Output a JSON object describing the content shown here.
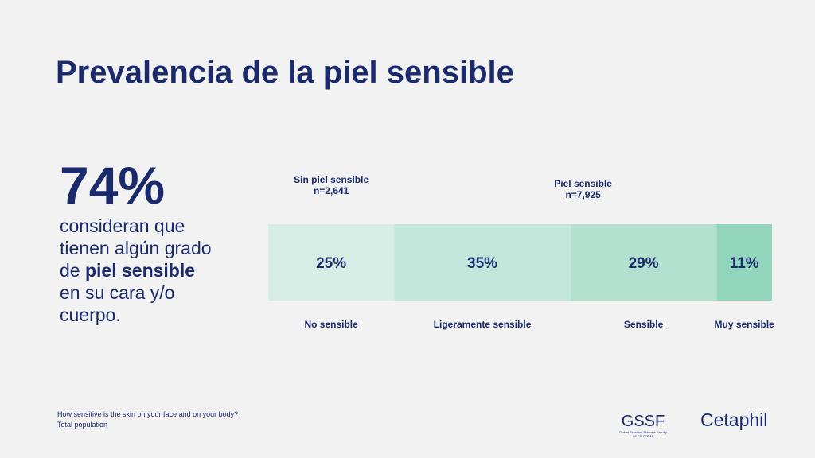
{
  "title": "Prevalencia de la piel sensible",
  "highlight": {
    "stat": "74%",
    "text": [
      "consideran que tienen algún grado de ",
      "piel sensible",
      " en su cara y/o cuerpo."
    ]
  },
  "chart_data": {
    "type": "stacked-bar-100",
    "groups": [
      {
        "label": "Sin piel sensible",
        "n": "n=2,641",
        "from": 0,
        "to": 0
      },
      {
        "label": "Piel sensible",
        "n": "n=7,925",
        "from": 1,
        "to": 3
      }
    ],
    "categories": [
      "No sensible",
      "Ligeramente sensible",
      "Sensible",
      "Muy sensible"
    ],
    "values": [
      25,
      35,
      29,
      11
    ],
    "value_labels": [
      "25%",
      "35%",
      "29%",
      "11%"
    ],
    "colors": [
      "#d6eee5",
      "#c2e7da",
      "#b2e1d0",
      "#92d6bd"
    ],
    "xlim": [
      0,
      100
    ]
  },
  "footer": {
    "question": "How sensitive is the skin on your face and on your body?",
    "base": "Total population"
  },
  "logos": {
    "gssf": "GSSF",
    "gssf_sub": "Global Sensitive Skincare Faculty",
    "gssf_by": "BY GALDERMA",
    "brand": "Cetaphil"
  }
}
